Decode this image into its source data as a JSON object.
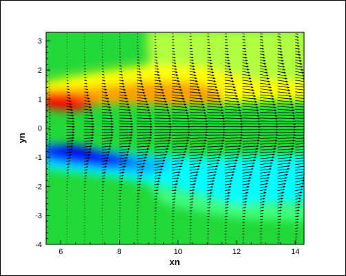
{
  "chart_data": {
    "type": "heatmap",
    "overlay": "vector field (arrows)",
    "xlabel": "xn",
    "ylabel": "yn",
    "xlim": [
      5.5,
      14.3
    ],
    "ylim": [
      -4,
      3.3
    ],
    "xticks": [
      6,
      8,
      10,
      12,
      14
    ],
    "yticks": [
      -4,
      -3,
      -2,
      -1,
      0,
      1,
      2,
      3
    ],
    "xtick_labels": [
      "6",
      "8",
      "10",
      "12",
      "14"
    ],
    "ytick_labels": [
      "-4",
      "-3",
      "-2",
      "-1",
      "0",
      "1",
      "2",
      "3"
    ],
    "grid": false,
    "legend": "none",
    "colormap": [
      "#0000ff",
      "#00b0ff",
      "#00ffff",
      "#40ff80",
      "#22d838",
      "#b0ff40",
      "#ffff00",
      "#ffa000",
      "#ff0000"
    ],
    "background_level_color": "#22d838",
    "features": [
      {
        "name": "upper shear layer (high)",
        "x_start": 5.5,
        "x_end": 14.3,
        "y_start": 1.0,
        "y_end": 1.6,
        "peak_color": "#ff0000"
      },
      {
        "name": "lower shear layer (low)",
        "x_start": 5.5,
        "x_end": 14.3,
        "y_start": -0.9,
        "y_end": -2.0,
        "peak_color": "#0000ff"
      }
    ],
    "vector_columns_x": [
      5.6,
      6.2,
      6.8,
      7.4,
      8.0,
      8.6,
      9.2,
      9.8,
      10.4,
      11.0,
      11.6,
      12.2,
      12.8,
      13.4,
      14.0
    ],
    "vector_rows_y_step": 0.1,
    "jet_centerline_y": 0,
    "max_arrow_length_x_units": 0.62
  }
}
